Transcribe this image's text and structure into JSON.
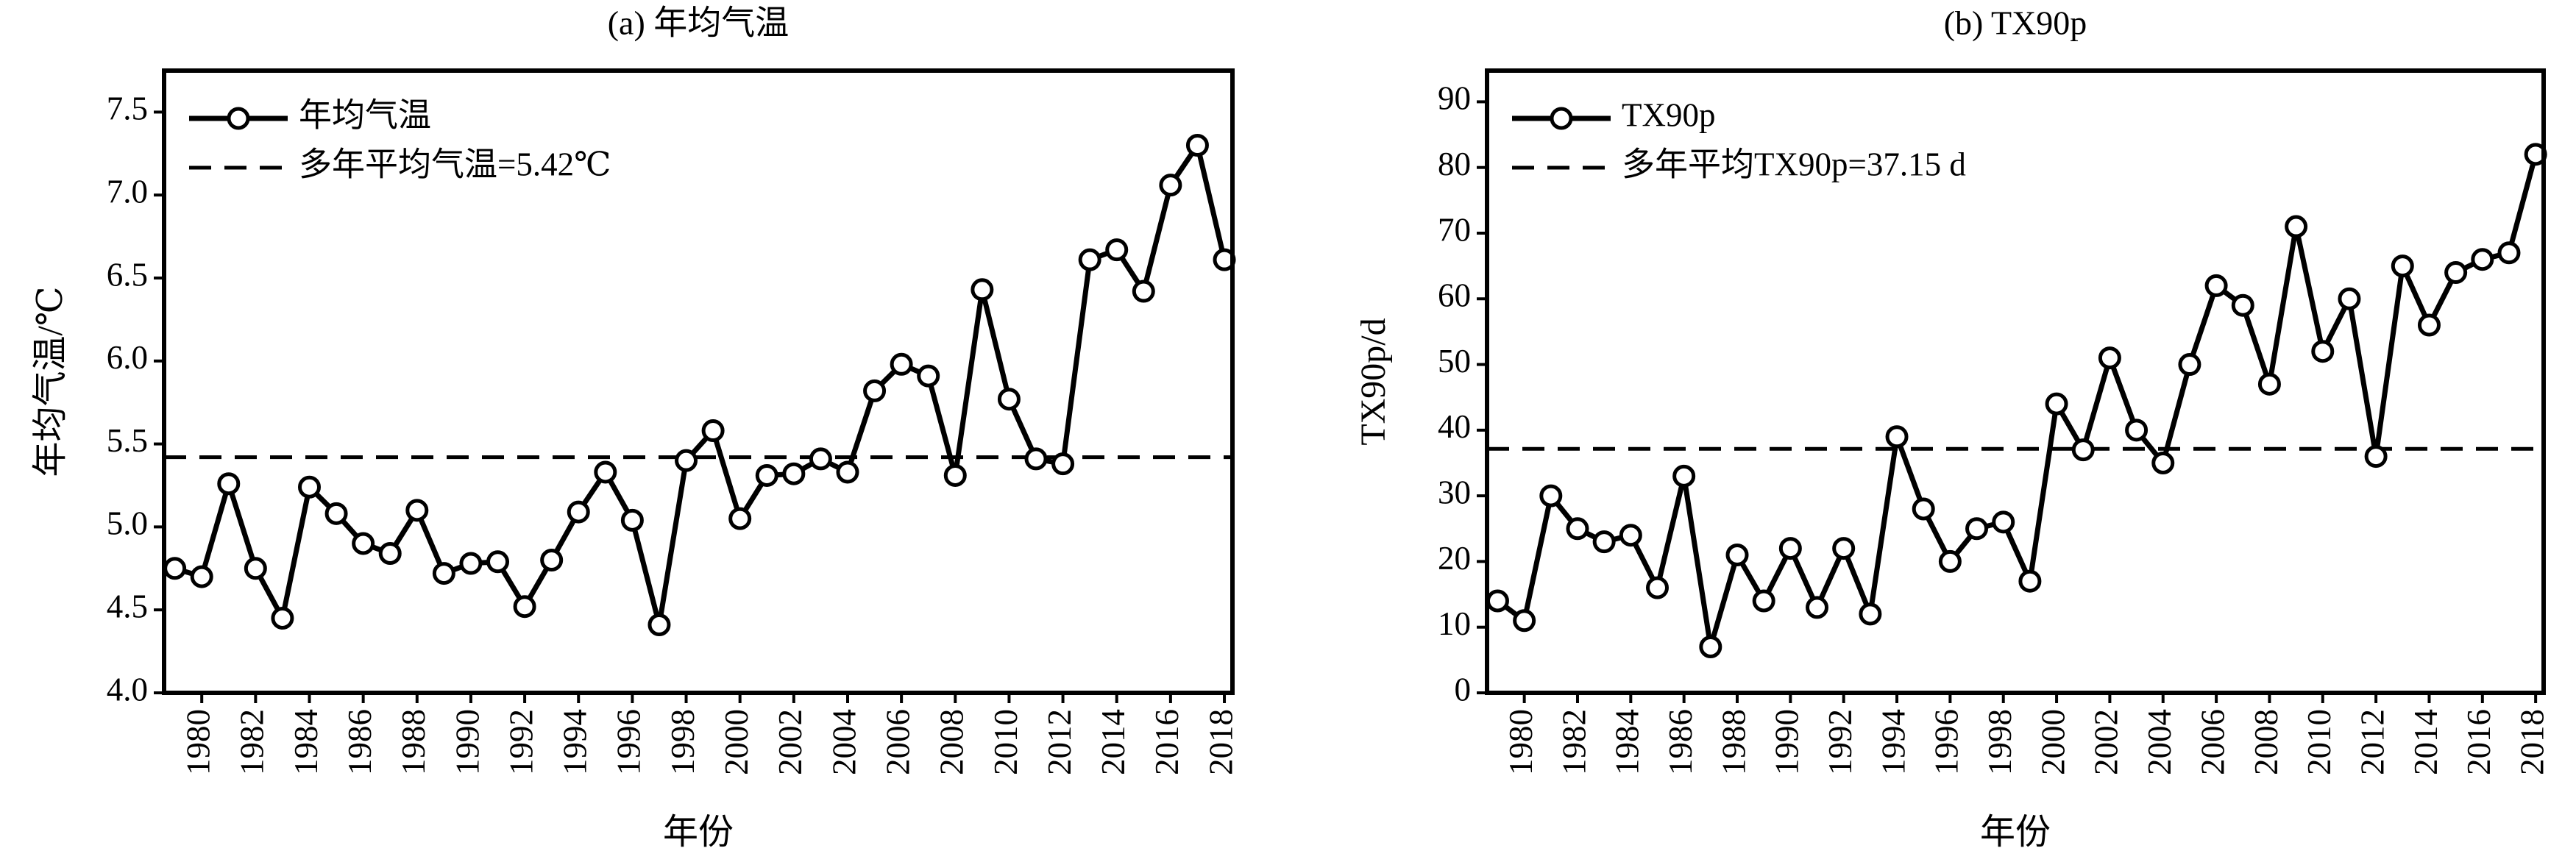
{
  "chart_data": [
    {
      "type": "line",
      "title": "(a) 年均气温",
      "xlabel": "年份",
      "ylabel": "年均气温/℃",
      "x": [
        1979,
        1980,
        1981,
        1982,
        1983,
        1984,
        1985,
        1986,
        1987,
        1988,
        1989,
        1990,
        1991,
        1992,
        1993,
        1994,
        1995,
        1996,
        1997,
        1998,
        1999,
        2000,
        2001,
        2002,
        2003,
        2004,
        2005,
        2006,
        2007,
        2008,
        2009,
        2010,
        2011,
        2012,
        2013,
        2014,
        2015,
        2016,
        2017,
        2018
      ],
      "series": [
        {
          "name": "年均气温",
          "color": "#000000",
          "values": [
            4.75,
            4.7,
            5.26,
            4.75,
            4.45,
            5.24,
            5.08,
            4.9,
            4.84,
            5.1,
            4.72,
            4.78,
            4.79,
            4.52,
            4.8,
            5.09,
            5.33,
            5.04,
            4.41,
            5.4,
            5.58,
            5.05,
            5.31,
            5.32,
            5.41,
            5.33,
            5.82,
            5.98,
            5.91,
            5.31,
            6.43,
            5.77,
            5.41,
            5.38,
            6.61,
            6.67,
            6.42,
            7.06,
            7.3,
            6.61
          ]
        }
      ],
      "reference_line": {
        "value": 5.42,
        "label": "多年平均气温=5.42℃"
      },
      "xlim": [
        1978.6,
        2018.3
      ],
      "xticks": [
        1980,
        1982,
        1984,
        1986,
        1988,
        1990,
        1992,
        1994,
        1996,
        1998,
        2000,
        2002,
        2004,
        2006,
        2008,
        2010,
        2012,
        2014,
        2016,
        2018
      ],
      "ylim": [
        4.0,
        7.75
      ],
      "yticks": [
        {
          "value": 4,
          "label": "4.0"
        },
        4.5,
        {
          "value": 5,
          "label": "5.0"
        },
        5.5,
        {
          "value": 6,
          "label": "6.0"
        },
        6.5,
        {
          "value": 7,
          "label": "7.0"
        },
        7.5
      ],
      "legend": "upper left"
    },
    {
      "type": "line",
      "title": "(b) TX90p",
      "xlabel": "年份",
      "ylabel": "TX90p/d",
      "x": [
        1979,
        1980,
        1981,
        1982,
        1983,
        1984,
        1985,
        1986,
        1987,
        1988,
        1989,
        1990,
        1991,
        1992,
        1993,
        1994,
        1995,
        1996,
        1997,
        1998,
        1999,
        2000,
        2001,
        2002,
        2003,
        2004,
        2005,
        2006,
        2007,
        2008,
        2009,
        2010,
        2011,
        2012,
        2013,
        2014,
        2015,
        2016,
        2017,
        2018
      ],
      "series": [
        {
          "name": "TX90p",
          "color": "#000000",
          "values": [
            14,
            11,
            30,
            25,
            23,
            24,
            16,
            33,
            7,
            21,
            14,
            22,
            13,
            22,
            12,
            39,
            28,
            20,
            25,
            26,
            17,
            44,
            37,
            51,
            40,
            35,
            50,
            62,
            59,
            47,
            71,
            52,
            60,
            36,
            65,
            56,
            64,
            66,
            67,
            82
          ]
        }
      ],
      "reference_line": {
        "value": 37.15,
        "label": "多年平均TX90p=37.15 d"
      },
      "xlim": [
        1978.6,
        2018.3
      ],
      "xticks": [
        1980,
        1982,
        1984,
        1986,
        1988,
        1990,
        1992,
        1994,
        1996,
        1998,
        2000,
        2002,
        2004,
        2006,
        2008,
        2010,
        2012,
        2014,
        2016,
        2018
      ],
      "ylim": [
        0,
        94.75
      ],
      "yticks": [
        0,
        10,
        20,
        30,
        40,
        50,
        60,
        70,
        80,
        90
      ],
      "legend": "upper left"
    }
  ]
}
